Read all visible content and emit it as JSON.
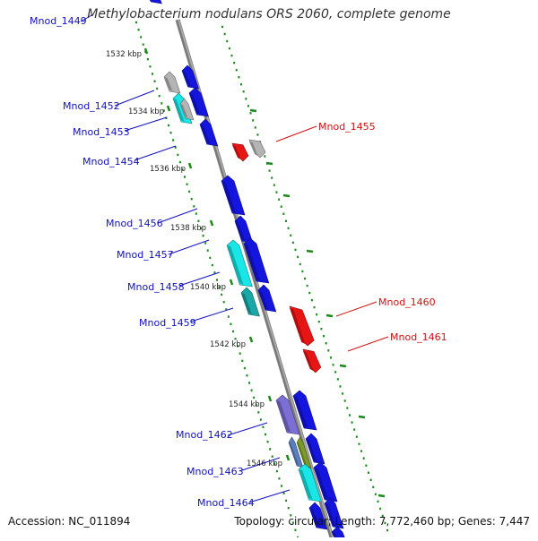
{
  "title": "Methylobacterium nodulans ORS 2060, complete genome",
  "footer": {
    "accession": "Accession: NC_011894",
    "summary": "Topology: circular; Length: 7,772,460 bp; Genes: 7,447"
  },
  "colors": {
    "backbone": "#8a8a8a",
    "tick": "#1a8a1a",
    "forward_label": "#1010c0",
    "reverse_label": "#d01010",
    "gene_blue": "#1515e0",
    "gene_cyan": "#19e6e6",
    "gene_teal": "#1aa8a8",
    "gene_gray": "#b4b4b4",
    "gene_red": "#e81515",
    "gene_lavender": "#7b6fd6",
    "gene_steel": "#5a7fc0",
    "gene_olive": "#7a9a2a"
  },
  "ticks": [
    {
      "label": "1532 kbp",
      "kbp": 1532
    },
    {
      "label": "1534 kbp",
      "kbp": 1534
    },
    {
      "label": "1536 kbp",
      "kbp": 1536
    },
    {
      "label": "1538 kbp",
      "kbp": 1538
    },
    {
      "label": "1540 kbp",
      "kbp": 1540
    },
    {
      "label": "1542 kbp",
      "kbp": 1542
    },
    {
      "label": "1544 kbp",
      "kbp": 1544
    },
    {
      "label": "1546 kbp",
      "kbp": 1546
    }
  ],
  "gene_labels": [
    {
      "label": "Mnod_1449",
      "strand": "forward"
    },
    {
      "label": "Mnod_1452",
      "strand": "forward"
    },
    {
      "label": "Mnod_1453",
      "strand": "forward"
    },
    {
      "label": "Mnod_1454",
      "strand": "forward"
    },
    {
      "label": "Mnod_1455",
      "strand": "reverse"
    },
    {
      "label": "Mnod_1456",
      "strand": "forward"
    },
    {
      "label": "Mnod_1457",
      "strand": "forward"
    },
    {
      "label": "Mnod_1458",
      "strand": "forward"
    },
    {
      "label": "Mnod_1459",
      "strand": "forward"
    },
    {
      "label": "Mnod_1460",
      "strand": "reverse"
    },
    {
      "label": "Mnod_1461",
      "strand": "reverse"
    },
    {
      "label": "Mnod_1462",
      "strand": "forward"
    },
    {
      "label": "Mnod_1463",
      "strand": "forward"
    },
    {
      "label": "Mnod_1464",
      "strand": "forward"
    }
  ]
}
